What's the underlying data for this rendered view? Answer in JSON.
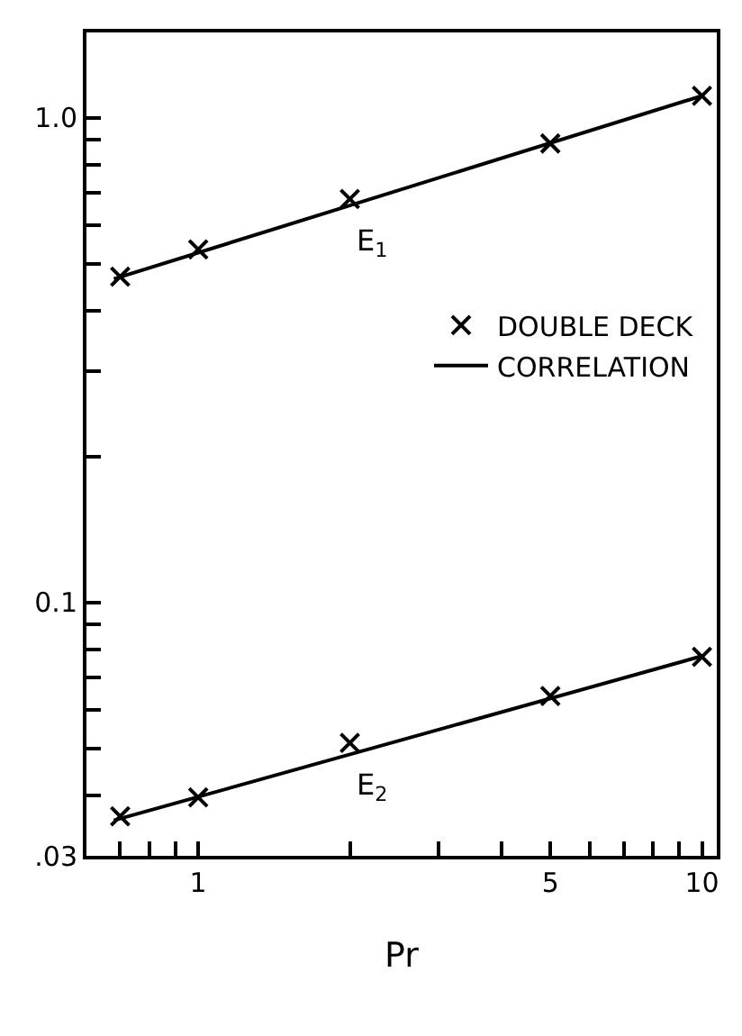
{
  "chart_data": {
    "type": "scatter",
    "xlabel": "Pr",
    "log": "xy",
    "grid": false,
    "legend": "right",
    "marker": "cross",
    "xlim": [
      0.6,
      10.7
    ],
    "ylim": [
      0.03,
      1.5
    ],
    "xticks": [
      {
        "value": 0.7,
        "label": null
      },
      {
        "value": 0.8,
        "label": null
      },
      {
        "value": 0.9,
        "label": null
      },
      1,
      {
        "value": 2,
        "label": null
      },
      {
        "value": 3,
        "label": null
      },
      {
        "value": 4,
        "label": null
      },
      5,
      {
        "value": 6,
        "label": null
      },
      {
        "value": 7,
        "label": null
      },
      {
        "value": 8,
        "label": null
      },
      {
        "value": 9,
        "label": null
      },
      10
    ],
    "yticks": [
      {
        "value": 0.03,
        "label": ".03"
      },
      {
        "value": 0.04,
        "label": null
      },
      {
        "value": 0.05,
        "label": null
      },
      {
        "value": 0.06,
        "label": null
      },
      {
        "value": 0.07,
        "label": null
      },
      {
        "value": 0.08,
        "label": null
      },
      {
        "value": 0.09,
        "label": null
      },
      {
        "value": 0.1,
        "label": "0.1"
      },
      {
        "value": 0.2,
        "label": null
      },
      {
        "value": 0.3,
        "label": null
      },
      {
        "value": 0.4,
        "label": null
      },
      {
        "value": 0.5,
        "label": null
      },
      {
        "value": 0.6,
        "label": null
      },
      {
        "value": 0.7,
        "label": null
      },
      {
        "value": 0.8,
        "label": null
      },
      {
        "value": 0.9,
        "label": null
      },
      {
        "value": 1,
        "label": "1.0"
      }
    ],
    "annotations": [
      {
        "text": "E$_{1}$",
        "x": 2,
        "y": 0.68
      },
      {
        "text": "E$_{2}$",
        "x": 2,
        "y": 0.0513
      }
    ],
    "series": [
      {
        "name": "CORRELATION",
        "type": "line",
        "color": "#000000",
        "line_style": "solid",
        "marker": "none",
        "x": [
          0.68,
          10
        ],
        "values": [
          0.465,
          1.11
        ]
      },
      {
        "type": "line",
        "color": "#000000",
        "line_style": "solid",
        "marker": "none",
        "x": [
          0.68,
          10
        ],
        "values": [
          0.0355,
          0.0775
        ]
      },
      {
        "name": "DOUBLE DECK",
        "color": "#000000",
        "x": [
          0.7,
          1,
          2,
          5,
          10
        ],
        "values": [
          0.47,
          0.535,
          0.68,
          0.885,
          1.11
        ]
      },
      {
        "color": "#000000",
        "x": [
          0.7,
          1,
          2,
          5,
          10
        ],
        "values": [
          0.0362,
          0.0396,
          0.0513,
          0.0641,
          0.0772
        ]
      }
    ]
  }
}
